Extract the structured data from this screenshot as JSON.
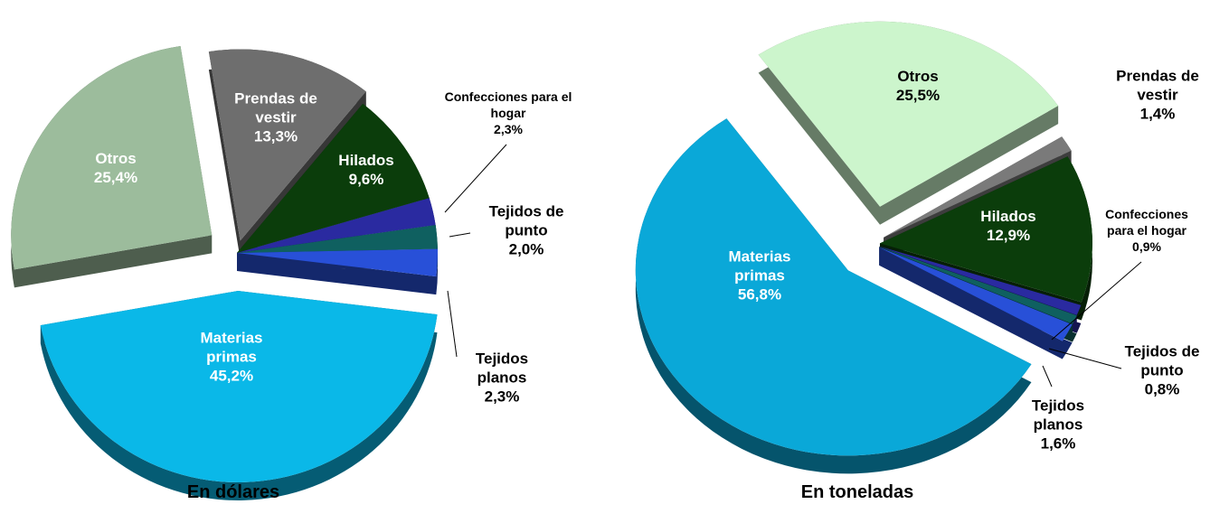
{
  "chart_data": [
    {
      "type": "pie",
      "title": "En dólares",
      "categories": [
        "Prendas de vestir",
        "Hilados",
        "Confecciones para el hogar",
        "Tejidos de punto",
        "Tejidos planos",
        "Materias primas",
        "Otros"
      ],
      "values": [
        13.3,
        9.6,
        2.3,
        2.0,
        2.3,
        45.2,
        25.4
      ],
      "value_labels": [
        "13,3%",
        "9,6%",
        "2,3%",
        "2,0%",
        "2,3%",
        "45,2%",
        "25,4%"
      ],
      "colors": [
        "#6e6e6e",
        "#0b3d0b",
        "#2a2aa0",
        "#0f6060",
        "#2850d8",
        "#0ab8e8",
        "#9cbc9c"
      ]
    },
    {
      "type": "pie",
      "title": "En toneladas",
      "categories": [
        "Prendas de vestir",
        "Hilados",
        "Confecciones para el hogar",
        "Tejidos de punto",
        "Tejidos planos",
        "Materias primas",
        "Otros"
      ],
      "values": [
        1.4,
        12.9,
        0.9,
        0.8,
        1.6,
        56.8,
        25.5
      ],
      "value_labels": [
        "1,4%",
        "12,9%",
        "0,9%",
        "0,8%",
        "1,6%",
        "56,8%",
        "25,5%"
      ],
      "colors": [
        "#7a7a7a",
        "#0b3d0b",
        "#2a2aa0",
        "#0f6060",
        "#2850d8",
        "#0aa8d8",
        "#ccf5cc"
      ]
    }
  ]
}
